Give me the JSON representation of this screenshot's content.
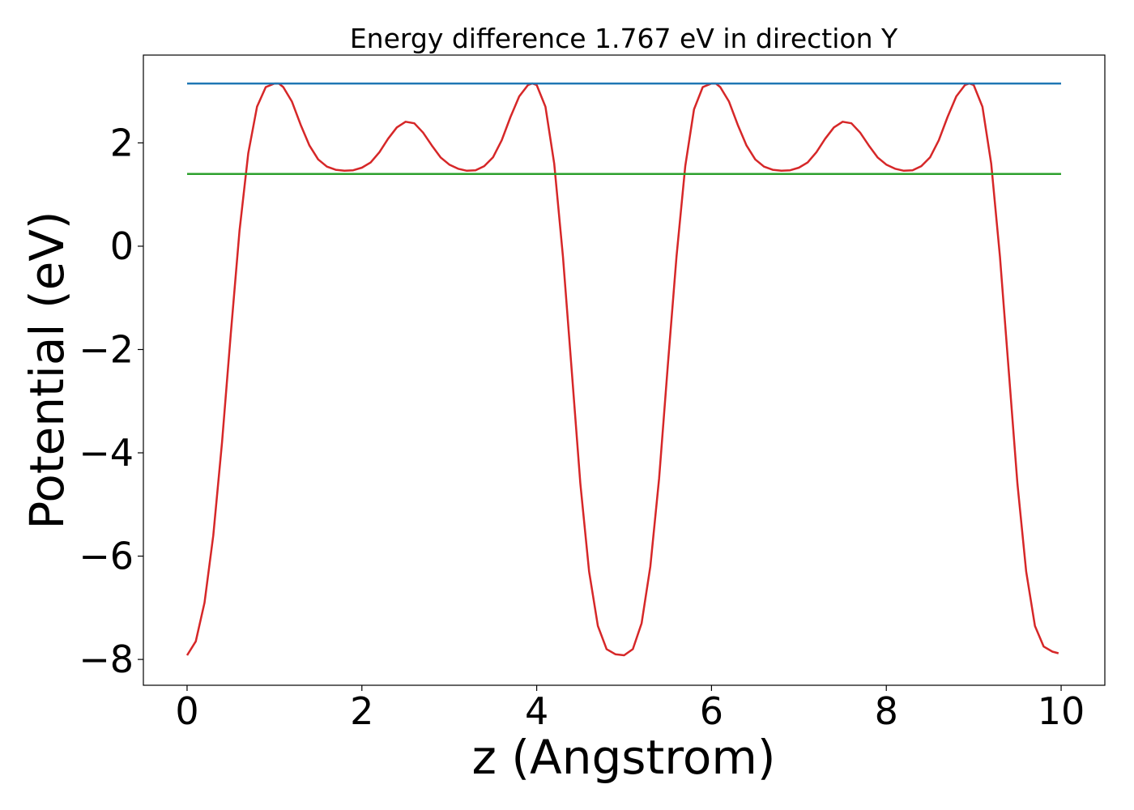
{
  "chart_data": {
    "type": "line",
    "title": "Energy difference 1.767 eV in direction Y",
    "xlabel": "z (Angstrom)",
    "ylabel": "Potential (eV)",
    "xlim": [
      -0.5,
      10.5
    ],
    "ylim": [
      -8.5,
      3.7
    ],
    "x_ticks": [
      0,
      2,
      4,
      6,
      8,
      10
    ],
    "x_tick_labels": [
      "0",
      "2",
      "4",
      "6",
      "8",
      "10"
    ],
    "y_ticks": [
      -8,
      -6,
      -4,
      -2,
      0,
      2
    ],
    "y_tick_labels": [
      "−8",
      "−6",
      "−4",
      "−2",
      "0",
      "2"
    ],
    "grid": false,
    "series": [
      {
        "color": "#d62728",
        "x": [
          0.0,
          0.1,
          0.2,
          0.3,
          0.4,
          0.5,
          0.6,
          0.7,
          0.8,
          0.9,
          1.0,
          1.05,
          1.1,
          1.2,
          1.3,
          1.4,
          1.5,
          1.6,
          1.7,
          1.8,
          1.9,
          2.0,
          2.1,
          2.2,
          2.3,
          2.4,
          2.5,
          2.6,
          2.7,
          2.8,
          2.9,
          3.0,
          3.1,
          3.2,
          3.3,
          3.4,
          3.5,
          3.6,
          3.7,
          3.8,
          3.9,
          3.95,
          4.0,
          4.1,
          4.2,
          4.3,
          4.4,
          4.5,
          4.6,
          4.7,
          4.8,
          4.9,
          5.0,
          5.1,
          5.2,
          5.3,
          5.4,
          5.5,
          5.6,
          5.7,
          5.8,
          5.9,
          6.0,
          6.05,
          6.1,
          6.2,
          6.3,
          6.4,
          6.5,
          6.6,
          6.7,
          6.8,
          6.9,
          7.0,
          7.1,
          7.2,
          7.3,
          7.4,
          7.5,
          7.6,
          7.7,
          7.8,
          7.9,
          8.0,
          8.1,
          8.2,
          8.3,
          8.4,
          8.5,
          8.6,
          8.7,
          8.8,
          8.9,
          8.95,
          9.0,
          9.1,
          9.2,
          9.3,
          9.4,
          9.5,
          9.6,
          9.7,
          9.8,
          9.9,
          9.97
        ],
        "y": [
          -7.92,
          -7.65,
          -6.9,
          -5.6,
          -3.8,
          -1.7,
          0.3,
          1.8,
          2.7,
          3.08,
          3.15,
          3.15,
          3.08,
          2.8,
          2.35,
          1.95,
          1.68,
          1.54,
          1.48,
          1.46,
          1.47,
          1.52,
          1.62,
          1.82,
          2.08,
          2.3,
          2.41,
          2.38,
          2.2,
          1.95,
          1.72,
          1.58,
          1.5,
          1.46,
          1.47,
          1.55,
          1.72,
          2.05,
          2.5,
          2.9,
          3.12,
          3.15,
          3.12,
          2.7,
          1.6,
          -0.2,
          -2.4,
          -4.6,
          -6.3,
          -7.35,
          -7.8,
          -7.9,
          -7.92,
          -7.8,
          -7.3,
          -6.2,
          -4.5,
          -2.3,
          -0.2,
          1.55,
          2.65,
          3.08,
          3.15,
          3.15,
          3.08,
          2.8,
          2.35,
          1.95,
          1.68,
          1.54,
          1.48,
          1.46,
          1.47,
          1.52,
          1.62,
          1.82,
          2.08,
          2.3,
          2.41,
          2.38,
          2.2,
          1.95,
          1.72,
          1.58,
          1.5,
          1.46,
          1.47,
          1.55,
          1.72,
          2.05,
          2.5,
          2.9,
          3.12,
          3.15,
          3.12,
          2.7,
          1.6,
          -0.2,
          -2.4,
          -4.6,
          -6.3,
          -7.35,
          -7.75,
          -7.85,
          -7.88
        ]
      },
      {
        "color": "#1f77b4",
        "x": [
          0.0,
          10.0
        ],
        "y": [
          3.15,
          3.15
        ]
      },
      {
        "color": "#2ca02c",
        "x": [
          0.0,
          10.0
        ],
        "y": [
          1.4,
          1.4
        ]
      }
    ]
  }
}
